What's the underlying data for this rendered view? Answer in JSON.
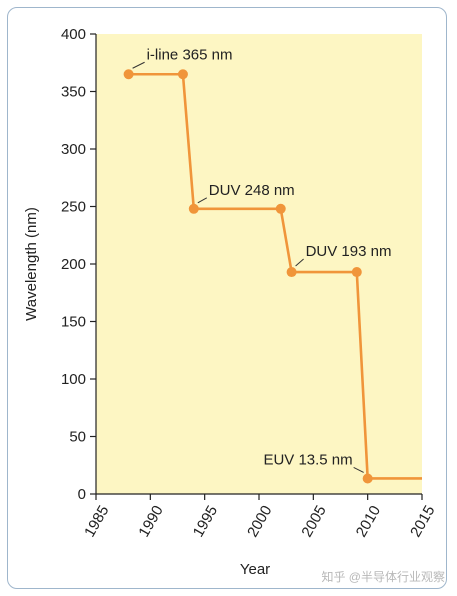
{
  "chart_data": {
    "type": "line",
    "xlabel": "Year",
    "ylabel": "Wavelength (nm)",
    "xlim": [
      1985,
      2015
    ],
    "ylim": [
      0,
      400
    ],
    "xticks": [
      1985,
      1990,
      1995,
      2000,
      2005,
      2010,
      2015
    ],
    "yticks": [
      0,
      50,
      100,
      150,
      200,
      250,
      300,
      350,
      400
    ],
    "grid": false,
    "line_color": "#f0953a",
    "background_color": "#fdf6c3",
    "series": [
      {
        "x": [
          1988,
          1993,
          1994,
          2002,
          2003,
          2009,
          2010,
          2015
        ],
        "y": [
          365,
          365,
          248,
          248,
          193,
          193,
          13.5,
          13.5
        ],
        "markers": [
          {
            "x": 1988,
            "y": 365
          },
          {
            "x": 1993,
            "y": 365
          },
          {
            "x": 1994,
            "y": 248
          },
          {
            "x": 2002,
            "y": 248
          },
          {
            "x": 2003,
            "y": 193
          },
          {
            "x": 2009,
            "y": 193
          },
          {
            "x": 2010,
            "y": 13.5
          }
        ]
      }
    ],
    "annotations": [
      {
        "text": "i-line 365 nm",
        "x": 1988,
        "y": 365
      },
      {
        "text": "DUV 248 nm",
        "x": 1994,
        "y": 248
      },
      {
        "text": "DUV 193 nm",
        "x": 2003,
        "y": 193
      },
      {
        "text": "EUV 13.5 nm",
        "x": 2010,
        "y": 13.5
      }
    ]
  },
  "watermark": "知乎 @半导体行业观察"
}
